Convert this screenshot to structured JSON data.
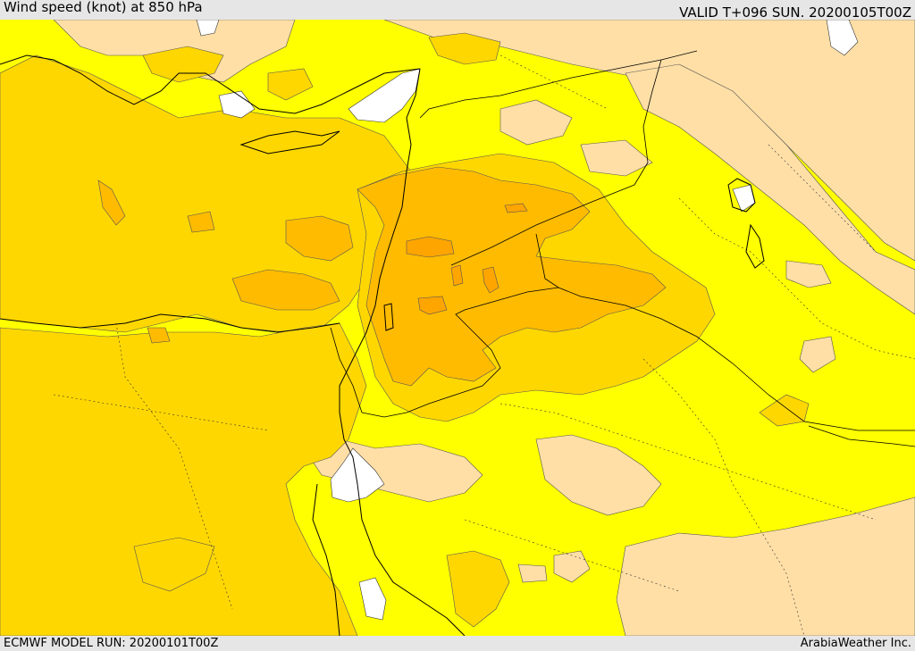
{
  "header": {
    "title": "Wind speed (knot) at 850 hPa",
    "valid_time": "VALID T+096 SUN. 20200105T00Z"
  },
  "footer": {
    "model_run": "ECMWF MODEL RUN: 20200101T00Z",
    "credit": "ArabiaWeather Inc."
  },
  "colors": {
    "land_light": "#ffdfa6",
    "yellow": "#ffff00",
    "gold": "#ffd700",
    "amber": "#ffbb00",
    "orange": "#ffa500",
    "calm_white": "#ffffff",
    "coastline": "#000000"
  }
}
